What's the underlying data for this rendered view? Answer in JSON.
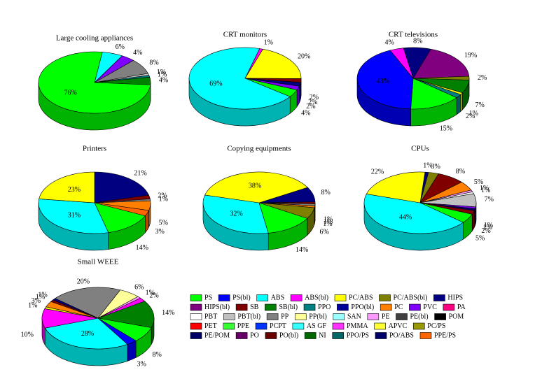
{
  "chart_data": [
    {
      "type": "pie",
      "title": "Large cooling appliances",
      "values": [
        6,
        4,
        8,
        1,
        1,
        4,
        76
      ],
      "value_labels": [
        "6%",
        "4%",
        "8%",
        "1%",
        "1%",
        "4%",
        "76%"
      ],
      "colors": [
        "#00ffff",
        "#8000ff",
        "#808080",
        "#c0c0c0",
        "#008080",
        "#008000",
        "#00ff00"
      ]
    },
    {
      "type": "pie",
      "title": "CRT monitors",
      "values": [
        1,
        20,
        2,
        2,
        2,
        4,
        69
      ],
      "value_labels": [
        "1%",
        "20%",
        "2%",
        "2%",
        "2%",
        "4%",
        "69%"
      ],
      "colors": [
        "#ff00ff",
        "#ffff00",
        "#800000",
        "#000080",
        "#8000ff",
        "#00ff00",
        "#00ffff"
      ]
    },
    {
      "type": "pie",
      "title": "CRT televisions",
      "values": [
        8,
        19,
        2,
        7,
        1,
        2,
        15,
        43,
        4
      ],
      "value_labels": [
        "8%",
        "19%",
        "2%",
        "7%",
        "1%",
        "2%",
        "15%",
        "43%",
        "4%"
      ],
      "colors": [
        "#000080",
        "#800080",
        "#808000",
        "#008000",
        "#ffff00",
        "#008080",
        "#00ff00",
        "#0000ff",
        "#ff00ff"
      ]
    },
    {
      "type": "pie",
      "title": "Printers",
      "values": [
        21,
        2,
        1,
        5,
        3,
        14,
        31,
        23
      ],
      "value_labels": [
        "21%",
        "2%",
        "1%",
        "5%",
        "3%",
        "14%",
        "31%",
        "23%"
      ],
      "colors": [
        "#000080",
        "#800000",
        "#808080",
        "#ff8000",
        "#ff6600",
        "#00ff00",
        "#00ffff",
        "#ffff00"
      ]
    },
    {
      "type": "pie",
      "title": "Copying equipments",
      "values": [
        8,
        1,
        1,
        1,
        6,
        14,
        32,
        38
      ],
      "value_labels": [
        "8%",
        "1%",
        "1%",
        "1%",
        "6%",
        "14%",
        "32%",
        "38%"
      ],
      "colors": [
        "#000080",
        "#800000",
        "#808080",
        "#ff8000",
        "#808000",
        "#00ff00",
        "#00ffff",
        "#ffff00"
      ]
    },
    {
      "type": "pie",
      "title": "CPUs",
      "values": [
        1,
        3,
        8,
        5,
        1,
        1,
        7,
        1,
        1,
        2,
        5,
        44,
        22
      ],
      "value_labels": [
        "1%",
        "3%",
        "8%",
        "5%",
        "1%",
        "1%",
        "7%",
        "1%",
        "1%",
        "2%",
        "5%",
        "44%",
        "22%"
      ],
      "colors": [
        "#000080",
        "#808000",
        "#800000",
        "#ff8000",
        "#ff99ff",
        "#ffffff",
        "#c0c0c0",
        "#8000ff",
        "#000066",
        "#800000",
        "#00ff00",
        "#00ffff",
        "#ffff00"
      ]
    },
    {
      "type": "pie",
      "title": "Small WEEE",
      "values": [
        20,
        6,
        1,
        2,
        14,
        8,
        3,
        28,
        10,
        1,
        3,
        1,
        1
      ],
      "value_labels": [
        "20%",
        "6%",
        "1%",
        "2%",
        "14%",
        "8%",
        "3%",
        "28%",
        "10%",
        "1%",
        "3%",
        "1%",
        "1%"
      ],
      "colors": [
        "#808080",
        "#ffff99",
        "#ff99ff",
        "#ff00ff",
        "#008000",
        "#00ff00",
        "#0000ff",
        "#00ffff",
        "#ff00ff",
        "#ffff00",
        "#ff8000",
        "#800000",
        "#000080"
      ]
    }
  ],
  "legend": [
    {
      "name": "PS",
      "color": "#00ff00"
    },
    {
      "name": "PS(bl)",
      "color": "#0000ff"
    },
    {
      "name": "ABS",
      "color": "#00ffff"
    },
    {
      "name": "ABS(bl)",
      "color": "#ff00ff"
    },
    {
      "name": "PC/ABS",
      "color": "#ffff00"
    },
    {
      "name": "PC/ABS(bl)",
      "color": "#808000"
    },
    {
      "name": "HIPS",
      "color": "#000080"
    },
    {
      "name": "HIPS(bl)",
      "color": "#800080"
    },
    {
      "name": "SB",
      "color": "#800000"
    },
    {
      "name": "SB(bl)",
      "color": "#008000"
    },
    {
      "name": "PPO",
      "color": "#008080"
    },
    {
      "name": "PPO(bl)",
      "color": "#000099"
    },
    {
      "name": "PC",
      "color": "#ff8000"
    },
    {
      "name": "PVC",
      "color": "#8000ff"
    },
    {
      "name": "PA",
      "color": "#ff0080"
    },
    {
      "name": "PBT",
      "color": "#ffffff"
    },
    {
      "name": "PBT(bl)",
      "color": "#c0c0c0"
    },
    {
      "name": "PP",
      "color": "#808080"
    },
    {
      "name": "PP(bl)",
      "color": "#ffff99"
    },
    {
      "name": "SAN",
      "color": "#99ffff"
    },
    {
      "name": "PE",
      "color": "#ff99ff"
    },
    {
      "name": "PE(bl)",
      "color": "#404040"
    },
    {
      "name": "POM",
      "color": "#000000"
    },
    {
      "name": "PET",
      "color": "#ff0000"
    },
    {
      "name": "PPE",
      "color": "#33ff33"
    },
    {
      "name": "PCPT",
      "color": "#0033ff"
    },
    {
      "name": "AS GF",
      "color": "#33ffff"
    },
    {
      "name": "PMMA",
      "color": "#ff33ff"
    },
    {
      "name": "APVC",
      "color": "#ffff33"
    },
    {
      "name": "PC/PS",
      "color": "#999900"
    },
    {
      "name": "PE/POM",
      "color": "#000066"
    },
    {
      "name": "PO",
      "color": "#660066"
    },
    {
      "name": "PO(bl)",
      "color": "#660000"
    },
    {
      "name": "NI",
      "color": "#006600"
    },
    {
      "name": "PPO/PS",
      "color": "#006666"
    },
    {
      "name": "PO/ABS",
      "color": "#000066"
    },
    {
      "name": "PPE/PS",
      "color": "#ff6600"
    }
  ]
}
